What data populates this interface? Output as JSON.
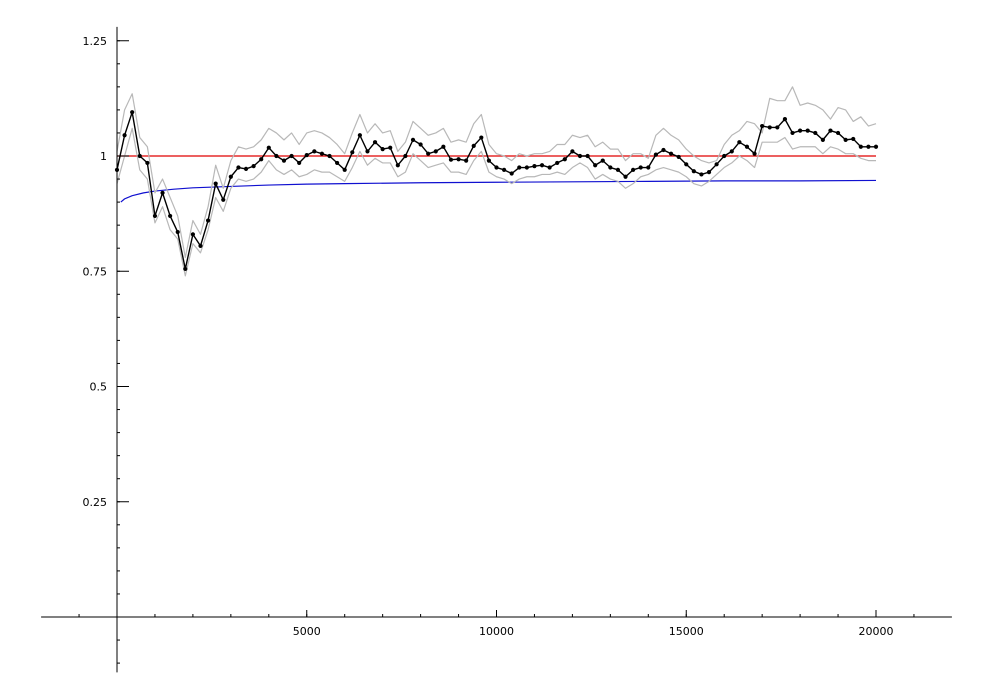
{
  "chart_data": {
    "type": "line",
    "title": "",
    "xlabel": "",
    "ylabel": "",
    "xlim": [
      -2000,
      22000
    ],
    "ylim": [
      -0.12,
      1.28
    ],
    "x_ticks": [
      {
        "value": 5000,
        "label": "5000"
      },
      {
        "value": 10000,
        "label": "10000"
      },
      {
        "value": 15000,
        "label": "15000"
      },
      {
        "value": 20000,
        "label": "20000"
      }
    ],
    "y_ticks": [
      {
        "value": 0.25,
        "label": "0.25"
      },
      {
        "value": 0.5,
        "label": "0.5"
      },
      {
        "value": 0.75,
        "label": "0.75"
      },
      {
        "value": 1.0,
        "label": "1"
      },
      {
        "value": 1.25,
        "label": "1.25"
      }
    ],
    "x_minor_step": 1000,
    "y_minor_step": 0.05,
    "grid": false,
    "legend": "none",
    "series": [
      {
        "role": "reference",
        "color": "#e00000",
        "markers": false,
        "x": [
          0,
          20000
        ],
        "values": [
          1.0,
          1.0
        ]
      },
      {
        "role": "smooth",
        "color": "#1010d0",
        "markers": false,
        "x": [
          100,
          200,
          400,
          700,
          1000,
          1500,
          2000,
          3000,
          4000,
          5000,
          6000,
          8000,
          10000,
          12000,
          14000,
          16000,
          18000,
          20000
        ],
        "values": [
          0.9,
          0.907,
          0.914,
          0.92,
          0.924,
          0.928,
          0.931,
          0.934,
          0.937,
          0.939,
          0.94,
          0.942,
          0.943,
          0.944,
          0.945,
          0.946,
          0.946,
          0.947
        ]
      },
      {
        "role": "upper",
        "color": "#b8b8b8",
        "markers": false,
        "x": [
          0,
          200,
          400,
          600,
          800,
          1000,
          1200,
          1400,
          1600,
          1800,
          2000,
          2200,
          2400,
          2600,
          2800,
          3000,
          3200,
          3400,
          3600,
          3800,
          4000,
          4200,
          4400,
          4600,
          4800,
          5000,
          5200,
          5400,
          5600,
          5800,
          6000,
          6200,
          6400,
          6600,
          6800,
          7000,
          7200,
          7400,
          7600,
          7800,
          8000,
          8200,
          8400,
          8600,
          8800,
          9000,
          9200,
          9400,
          9600,
          9800,
          10000,
          10200,
          10400,
          10600,
          10800,
          11000,
          11200,
          11400,
          11600,
          11800,
          12000,
          12200,
          12400,
          12600,
          12800,
          13000,
          13200,
          13400,
          13600,
          13800,
          14000,
          14200,
          14400,
          14600,
          14800,
          15000,
          15200,
          15400,
          15600,
          15800,
          16000,
          16200,
          16400,
          16600,
          16800,
          17000,
          17200,
          17400,
          17600,
          17800,
          18000,
          18200,
          18400,
          18600,
          18800,
          19000,
          19200,
          19400,
          19600,
          19800,
          20000
        ],
        "values": [
          1.01,
          1.1,
          1.135,
          1.04,
          1.02,
          0.92,
          0.95,
          0.91,
          0.87,
          0.78,
          0.86,
          0.83,
          0.89,
          0.98,
          0.93,
          0.99,
          1.02,
          1.015,
          1.02,
          1.035,
          1.06,
          1.05,
          1.035,
          1.05,
          1.025,
          1.05,
          1.055,
          1.05,
          1.04,
          1.025,
          1.005,
          1.05,
          1.09,
          1.05,
          1.07,
          1.05,
          1.055,
          1.01,
          1.03,
          1.075,
          1.06,
          1.045,
          1.05,
          1.06,
          1.03,
          1.035,
          1.03,
          1.07,
          1.09,
          1.025,
          1.005,
          1.0,
          0.99,
          1.005,
          1.0,
          1.005,
          1.005,
          1.01,
          1.025,
          1.025,
          1.045,
          1.04,
          1.045,
          1.02,
          1.03,
          1.015,
          1.015,
          0.99,
          1.005,
          1.005,
          0.995,
          1.045,
          1.06,
          1.045,
          1.035,
          1.015,
          1.0,
          0.99,
          0.985,
          0.99,
          1.025,
          1.045,
          1.055,
          1.075,
          1.07,
          1.05,
          1.125,
          1.12,
          1.12,
          1.15,
          1.11,
          1.115,
          1.11,
          1.1,
          1.08,
          1.105,
          1.1,
          1.075,
          1.085,
          1.065,
          1.07
        ]
      },
      {
        "role": "lower",
        "color": "#b8b8b8",
        "markers": false,
        "x": [
          0,
          200,
          400,
          600,
          800,
          1000,
          1200,
          1400,
          1600,
          1800,
          2000,
          2200,
          2400,
          2600,
          2800,
          3000,
          3200,
          3400,
          3600,
          3800,
          4000,
          4200,
          4400,
          4600,
          4800,
          5000,
          5200,
          5400,
          5600,
          5800,
          6000,
          6200,
          6400,
          6600,
          6800,
          7000,
          7200,
          7400,
          7600,
          7800,
          8000,
          8200,
          8400,
          8600,
          8800,
          9000,
          9200,
          9400,
          9600,
          9800,
          10000,
          10200,
          10400,
          10600,
          10800,
          11000,
          11200,
          11400,
          11600,
          11800,
          12000,
          12200,
          12400,
          12600,
          12800,
          13000,
          13200,
          13400,
          13600,
          13800,
          14000,
          14200,
          14400,
          14600,
          14800,
          15000,
          15200,
          15400,
          15600,
          15800,
          16000,
          16200,
          16400,
          16600,
          16800,
          17000,
          17200,
          17400,
          17600,
          17800,
          18000,
          18200,
          18400,
          18600,
          18800,
          19000,
          19200,
          19400,
          19600,
          19800,
          20000
        ],
        "values": [
          0.94,
          1.0,
          1.06,
          0.97,
          0.95,
          0.855,
          0.89,
          0.84,
          0.82,
          0.74,
          0.81,
          0.79,
          0.84,
          0.91,
          0.88,
          0.93,
          0.95,
          0.945,
          0.95,
          0.965,
          0.99,
          0.97,
          0.96,
          0.97,
          0.955,
          0.96,
          0.97,
          0.965,
          0.965,
          0.955,
          0.945,
          0.975,
          1.01,
          0.98,
          0.995,
          0.985,
          0.985,
          0.955,
          0.965,
          1.005,
          0.99,
          0.975,
          0.98,
          0.985,
          0.965,
          0.965,
          0.96,
          0.99,
          1.01,
          0.965,
          0.955,
          0.95,
          0.94,
          0.95,
          0.955,
          0.955,
          0.96,
          0.96,
          0.965,
          0.96,
          0.975,
          0.985,
          0.975,
          0.95,
          0.96,
          0.95,
          0.945,
          0.93,
          0.94,
          0.955,
          0.96,
          0.97,
          0.975,
          0.97,
          0.965,
          0.955,
          0.94,
          0.935,
          0.945,
          0.96,
          0.975,
          0.985,
          1.0,
          0.99,
          0.975,
          1.03,
          1.03,
          1.03,
          1.04,
          1.015,
          1.02,
          1.02,
          1.02,
          1.005,
          1.02,
          1.015,
          1.005,
          1.005,
          0.995,
          0.99,
          0.99
        ]
      },
      {
        "role": "main",
        "color": "#000000",
        "markers": true,
        "x": [
          0,
          200,
          400,
          600,
          800,
          1000,
          1200,
          1400,
          1600,
          1800,
          2000,
          2200,
          2400,
          2600,
          2800,
          3000,
          3200,
          3400,
          3600,
          3800,
          4000,
          4200,
          4400,
          4600,
          4800,
          5000,
          5200,
          5400,
          5600,
          5800,
          6000,
          6200,
          6400,
          6600,
          6800,
          7000,
          7200,
          7400,
          7600,
          7800,
          8000,
          8200,
          8400,
          8600,
          8800,
          9000,
          9200,
          9400,
          9600,
          9800,
          10000,
          10200,
          10400,
          10600,
          10800,
          11000,
          11200,
          11400,
          11600,
          11800,
          12000,
          12200,
          12400,
          12600,
          12800,
          13000,
          13200,
          13400,
          13600,
          13800,
          14000,
          14200,
          14400,
          14600,
          14800,
          15000,
          15200,
          15400,
          15600,
          15800,
          16000,
          16200,
          16400,
          16600,
          16800,
          17000,
          17200,
          17400,
          17600,
          17800,
          18000,
          18200,
          18400,
          18600,
          18800,
          19000,
          19200,
          19400,
          19600,
          19800,
          20000
        ],
        "values": [
          0.97,
          1.045,
          1.095,
          1.0,
          0.985,
          0.87,
          0.92,
          0.87,
          0.835,
          0.755,
          0.83,
          0.805,
          0.86,
          0.94,
          0.905,
          0.955,
          0.975,
          0.972,
          0.978,
          0.993,
          1.018,
          1.0,
          0.99,
          1.0,
          0.985,
          1.002,
          1.01,
          1.005,
          1.0,
          0.985,
          0.97,
          1.008,
          1.045,
          1.01,
          1.03,
          1.015,
          1.018,
          0.98,
          1.0,
          1.035,
          1.025,
          1.005,
          1.01,
          1.02,
          0.992,
          0.993,
          0.99,
          1.022,
          1.04,
          0.99,
          0.975,
          0.97,
          0.962,
          0.975,
          0.975,
          0.978,
          0.98,
          0.975,
          0.985,
          0.993,
          1.01,
          1.0,
          1.0,
          0.98,
          0.99,
          0.975,
          0.97,
          0.955,
          0.97,
          0.975,
          0.975,
          1.003,
          1.013,
          1.005,
          0.998,
          0.982,
          0.967,
          0.96,
          0.965,
          0.982,
          1.0,
          1.01,
          1.03,
          1.02,
          1.005,
          1.065,
          1.062,
          1.062,
          1.08,
          1.05,
          1.055,
          1.055,
          1.05,
          1.035,
          1.055,
          1.05,
          1.035,
          1.037,
          1.02,
          1.02,
          1.02
        ]
      }
    ]
  }
}
